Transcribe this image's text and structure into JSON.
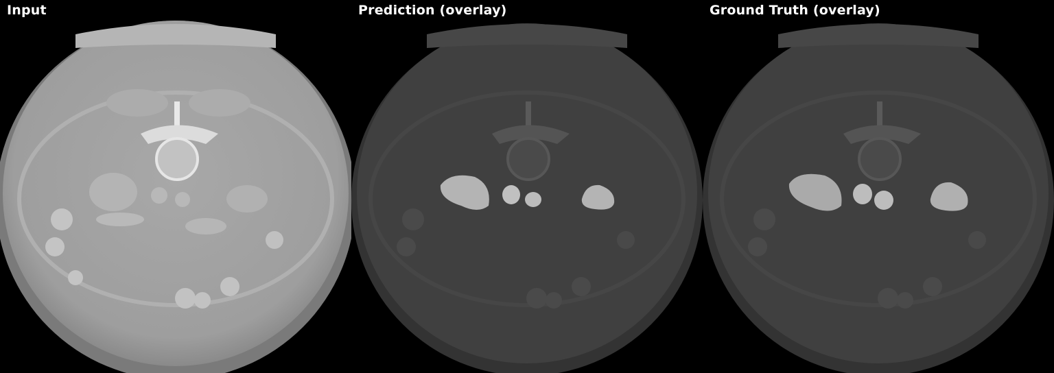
{
  "panels": [
    {
      "id": "input",
      "label": "Input",
      "brightness": "bright",
      "overlay": false
    },
    {
      "id": "prediction",
      "label": "Prediction (overlay)",
      "brightness": "dim",
      "overlay": true
    },
    {
      "id": "ground-truth",
      "label": "Ground Truth (overlay)",
      "brightness": "dim",
      "overlay": true
    }
  ],
  "colors": {
    "background": "#000000",
    "input_body": "#a3a3a3",
    "overlay_body": "#404040",
    "mask": "#b4b4b4"
  }
}
